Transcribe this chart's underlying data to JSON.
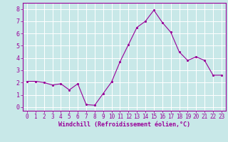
{
  "x": [
    0,
    1,
    2,
    3,
    4,
    5,
    6,
    7,
    8,
    9,
    10,
    11,
    12,
    13,
    14,
    15,
    16,
    17,
    18,
    19,
    20,
    21,
    22,
    23
  ],
  "y": [
    2.1,
    2.1,
    2.0,
    1.8,
    1.9,
    1.4,
    1.9,
    0.2,
    0.15,
    1.1,
    2.05,
    3.7,
    5.1,
    6.5,
    7.0,
    7.9,
    6.9,
    6.1,
    4.5,
    3.8,
    4.1,
    3.8,
    2.6,
    2.6
  ],
  "line_color": "#990099",
  "marker": ".",
  "marker_color": "#990099",
  "background_color": "#c8e8e8",
  "grid_color": "#aadddd",
  "xlabel": "Windchill (Refroidissement éolien,°C)",
  "xlabel_color": "#990099",
  "tick_color": "#990099",
  "spine_color": "#990099",
  "ylim": [
    -0.3,
    8.5
  ],
  "xlim": [
    -0.5,
    23.5
  ],
  "yticks": [
    0,
    1,
    2,
    3,
    4,
    5,
    6,
    7,
    8
  ],
  "xticks": [
    0,
    1,
    2,
    3,
    4,
    5,
    6,
    7,
    8,
    9,
    10,
    11,
    12,
    13,
    14,
    15,
    16,
    17,
    18,
    19,
    20,
    21,
    22,
    23
  ],
  "tick_fontsize": 5.5,
  "xlabel_fontsize": 6.0,
  "linewidth": 0.8,
  "markersize": 2.5
}
